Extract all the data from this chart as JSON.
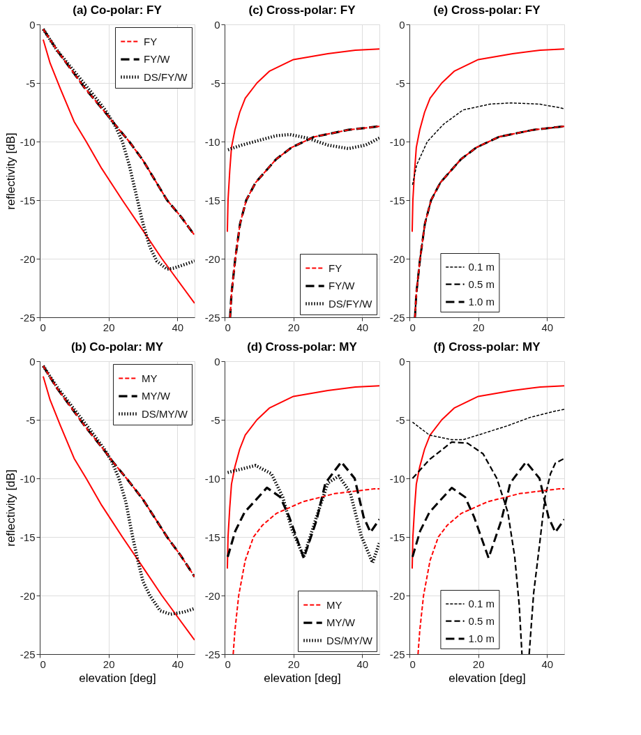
{
  "chart_data": [
    {
      "type": "line",
      "title": "(a) Co-polar: FY",
      "ylabel": "reflectivity [dB]",
      "xlim": [
        0,
        45
      ],
      "xticks": [
        0,
        20,
        40
      ],
      "ylim": [
        -25,
        0
      ],
      "yticks": [
        -25,
        -20,
        -15,
        -10,
        -5,
        0
      ],
      "grid": true,
      "legend": "top right",
      "series": [
        {
          "color": "#ff0000",
          "line_style": "solid",
          "x": [
            1,
            3,
            6,
            10,
            13.5,
            18,
            24,
            30,
            35.5,
            40,
            45
          ],
          "values": [
            -1.3,
            -3.3,
            -5.5,
            -8.3,
            -10,
            -12.3,
            -15,
            -17.6,
            -20,
            -21.8,
            -23.8
          ]
        },
        {
          "name": "FY",
          "color": "#ff0000",
          "line_style": "dashed",
          "x": [
            1,
            5,
            10,
            13,
            19,
            22,
            26,
            30,
            37,
            41,
            45
          ],
          "values": [
            -0.4,
            -2.2,
            -4.2,
            -5.4,
            -7.5,
            -8.6,
            -10,
            -11.6,
            -15,
            -16.4,
            -18
          ]
        },
        {
          "name": "FY/W",
          "color": "#000000",
          "line_style": "dashed",
          "x": [
            1,
            5,
            10,
            13,
            19,
            22,
            26,
            30,
            37,
            41,
            45
          ],
          "values": [
            -0.4,
            -2.2,
            -4.2,
            -5.4,
            -7.5,
            -8.6,
            -10,
            -11.6,
            -15,
            -16.4,
            -18
          ]
        },
        {
          "name": "DS/FY/W",
          "color": "#000000",
          "line_style": "dotted",
          "x": [
            1,
            5,
            10,
            15,
            19,
            22,
            24,
            26,
            28,
            30,
            32,
            34,
            37,
            39,
            42,
            45
          ],
          "values": [
            -0.4,
            -2.2,
            -4,
            -5.8,
            -7.3,
            -8.7,
            -10,
            -12,
            -14.5,
            -17,
            -19,
            -20.2,
            -20.9,
            -20.8,
            -20.5,
            -20.2
          ]
        }
      ]
    },
    {
      "type": "line",
      "title": "(c) Cross-polar: FY",
      "xlim": [
        0,
        45
      ],
      "xticks": [
        0,
        20,
        40
      ],
      "ylim": [
        -25,
        0
      ],
      "yticks": [
        -25,
        -20,
        -15,
        -10,
        -5,
        0
      ],
      "grid": true,
      "legend": "bottom right",
      "series": [
        {
          "color": "#ff0000",
          "line_style": "solid",
          "x": [
            0.8,
            1,
            1.5,
            2,
            3,
            4.4,
            6,
            9.4,
            13,
            20,
            30,
            38,
            45
          ],
          "values": [
            -17.7,
            -15,
            -12.5,
            -10.5,
            -9,
            -7.5,
            -6.3,
            -5,
            -4,
            -3,
            -2.5,
            -2.2,
            -2.1
          ]
        },
        {
          "name": "FY",
          "color": "#ff0000",
          "line_style": "dashed",
          "x": [
            1.6,
            2,
            3.1,
            4.5,
            6.3,
            9,
            12,
            15,
            19.5,
            26,
            36,
            45
          ],
          "values": [
            -25,
            -23,
            -20,
            -17,
            -15,
            -13.5,
            -12.5,
            -11.5,
            -10.5,
            -9.6,
            -9,
            -8.7
          ]
        },
        {
          "name": "FY/W",
          "color": "#000000",
          "line_style": "dashed",
          "x": [
            1.6,
            2,
            3.1,
            4.5,
            6.3,
            9,
            12,
            15,
            19.5,
            26,
            36,
            45
          ],
          "values": [
            -25,
            -23,
            -20,
            -17,
            -15,
            -13.5,
            -12.5,
            -11.5,
            -10.5,
            -9.6,
            -9,
            -8.7
          ]
        },
        {
          "name": "DS/FY/W",
          "color": "#000000",
          "line_style": "dotted",
          "x": [
            1,
            5,
            10,
            15,
            19,
            24,
            30,
            36,
            41,
            45
          ],
          "values": [
            -10.7,
            -10.3,
            -9.9,
            -9.5,
            -9.4,
            -9.7,
            -10.3,
            -10.6,
            -10.3,
            -9.7
          ]
        }
      ]
    },
    {
      "type": "line",
      "title": "(e) Cross-polar: FY",
      "xlim": [
        0,
        45
      ],
      "xticks": [
        0,
        20,
        40
      ],
      "ylim": [
        -25,
        0
      ],
      "yticks": [
        -25,
        -20,
        -15,
        -10,
        -5,
        0
      ],
      "grid": true,
      "legend": "bottom left",
      "series": [
        {
          "color": "#ff0000",
          "line_style": "solid",
          "x": [
            0.8,
            1,
            1.5,
            2,
            3,
            4.4,
            6,
            9.4,
            13,
            20,
            30,
            38,
            45
          ],
          "values": [
            -17.7,
            -15,
            -12.5,
            -10.5,
            -9,
            -7.5,
            -6.3,
            -5,
            -4,
            -3,
            -2.5,
            -2.2,
            -2.1
          ]
        },
        {
          "color": "#ff0000",
          "line_style": "dashed",
          "x": [
            1.6,
            2,
            3.1,
            4.5,
            6.3,
            9,
            12,
            15,
            19.5,
            26,
            36,
            45
          ],
          "values": [
            -25,
            -23,
            -20,
            -17,
            -15,
            -13.5,
            -12.5,
            -11.5,
            -10.5,
            -9.6,
            -9,
            -8.7
          ]
        },
        {
          "name": "0.1 m",
          "color": "#000000",
          "line_style": "dashed",
          "x": [
            0.9,
            2.1,
            5.2,
            10,
            15.6,
            23.5,
            29.6,
            37.7,
            43.5,
            45
          ],
          "values": [
            -13.7,
            -12,
            -10,
            -8.5,
            -7.3,
            -6.8,
            -6.7,
            -6.8,
            -7.1,
            -7.2
          ]
        },
        {
          "name": "0.5 m",
          "color": "#000000",
          "line_style": "dashed",
          "x": [
            1.6,
            2,
            3.1,
            4.5,
            6.3,
            9,
            12,
            15,
            19.5,
            26,
            36,
            45
          ],
          "values": [
            -25,
            -23,
            -20,
            -17,
            -15,
            -13.5,
            -12.5,
            -11.5,
            -10.5,
            -9.6,
            -9,
            -8.7
          ]
        },
        {
          "name": "1.0 m",
          "color": "#000000",
          "line_style": "dashed",
          "x": [
            1.6,
            2,
            3.1,
            4.5,
            6.3,
            9,
            12,
            15,
            19.5,
            26,
            36,
            45
          ],
          "values": [
            -25,
            -23,
            -20,
            -17,
            -15,
            -13.5,
            -12.5,
            -11.5,
            -10.5,
            -9.6,
            -9,
            -8.7
          ]
        }
      ]
    },
    {
      "type": "line",
      "title": "(b) Co-polar: MY",
      "xlabel": "elevation [deg]",
      "ylabel": "reflectivity [dB]",
      "xlim": [
        0,
        45
      ],
      "xticks": [
        0,
        20,
        40
      ],
      "ylim": [
        -25,
        0
      ],
      "yticks": [
        -25,
        -20,
        -15,
        -10,
        -5,
        0
      ],
      "grid": true,
      "legend": "top right",
      "series": [
        {
          "color": "#ff0000",
          "line_style": "solid",
          "x": [
            1,
            3,
            6,
            10,
            13.5,
            18,
            24,
            30,
            35.5,
            40,
            45
          ],
          "values": [
            -1.3,
            -3.3,
            -5.5,
            -8.3,
            -10,
            -12.3,
            -15,
            -17.6,
            -20,
            -21.8,
            -23.8
          ]
        },
        {
          "name": "MY",
          "color": "#ff0000",
          "line_style": "dashed",
          "x": [
            1,
            5,
            10,
            13,
            19,
            21,
            25.5,
            30,
            37,
            41,
            45
          ],
          "values": [
            -0.4,
            -2.3,
            -4.3,
            -5.5,
            -7.7,
            -8.5,
            -10.1,
            -11.8,
            -15,
            -16.6,
            -18.4
          ]
        },
        {
          "name": "MY/W",
          "color": "#000000",
          "line_style": "dashed",
          "x": [
            1,
            5,
            10,
            13,
            19,
            21,
            25.5,
            30,
            37,
            41,
            45
          ],
          "values": [
            -0.4,
            -2.3,
            -4.3,
            -5.5,
            -7.7,
            -8.5,
            -10.1,
            -11.8,
            -15,
            -16.6,
            -18.4
          ]
        },
        {
          "name": "DS/MY/W",
          "color": "#000000",
          "line_style": "dotted",
          "x": [
            1,
            5,
            10,
            15,
            19,
            21,
            23,
            25,
            27,
            28.5,
            30,
            32,
            35,
            38,
            42,
            45
          ],
          "values": [
            -0.4,
            -2.2,
            -4.1,
            -6,
            -7.6,
            -8.6,
            -10,
            -12,
            -15,
            -17,
            -18.8,
            -20,
            -21.3,
            -21.6,
            -21.4,
            -21.1
          ]
        }
      ]
    },
    {
      "type": "line",
      "title": "(d) Cross-polar: MY",
      "xlabel": "elevation [deg]",
      "xlim": [
        0,
        45
      ],
      "xticks": [
        0,
        20,
        40
      ],
      "ylim": [
        -25,
        0
      ],
      "yticks": [
        -25,
        -20,
        -15,
        -10,
        -5,
        0
      ],
      "grid": true,
      "legend": "bottom right",
      "series": [
        {
          "color": "#ff0000",
          "line_style": "solid",
          "x": [
            0.8,
            1,
            1.5,
            2,
            3,
            4.4,
            6,
            9.4,
            13,
            20,
            30,
            38,
            45
          ],
          "values": [
            -17.7,
            -15,
            -12.5,
            -10.5,
            -9,
            -7.5,
            -6.3,
            -5,
            -4,
            -3,
            -2.5,
            -2.2,
            -2.1
          ]
        },
        {
          "name": "MY",
          "color": "#ff0000",
          "line_style": "dashed",
          "x": [
            2.5,
            3,
            4.1,
            6,
            8.4,
            11,
            15,
            22.7,
            32,
            43.3,
            45
          ],
          "values": [
            -25,
            -23,
            -20,
            -17,
            -15,
            -14,
            -13,
            -12,
            -11.3,
            -10.9,
            -10.9
          ]
        },
        {
          "name": "MY/W",
          "color": "#000000",
          "line_style": "dashed",
          "x": [
            0.9,
            3.1,
            5.8,
            12.3,
            16.2,
            18.8,
            23,
            26.7,
            29.3,
            33.9,
            37.8,
            40.4,
            42.4,
            45
          ],
          "values": [
            -16.7,
            -14.5,
            -12.9,
            -10.8,
            -11.6,
            -13.3,
            -16.8,
            -13.6,
            -10.4,
            -8.6,
            -10,
            -13.3,
            -14.6,
            -13.5
          ]
        },
        {
          "name": "DS/MY/W",
          "color": "#000000",
          "line_style": "dotted",
          "x": [
            0.9,
            9,
            13.6,
            16.9,
            19.5,
            23,
            26.7,
            30,
            33.2,
            36.5,
            39.7,
            43,
            45
          ],
          "values": [
            -9.5,
            -8.9,
            -9.6,
            -11.6,
            -14.3,
            -16.7,
            -13.3,
            -10.4,
            -9.8,
            -11.2,
            -14.9,
            -17.2,
            -15.5
          ]
        }
      ]
    },
    {
      "type": "line",
      "title": "(f) Cross-polar: MY",
      "xlabel": "elevation [deg]",
      "xlim": [
        0,
        45
      ],
      "xticks": [
        0,
        20,
        40
      ],
      "ylim": [
        -25,
        0
      ],
      "yticks": [
        -25,
        -20,
        -15,
        -10,
        -5,
        0
      ],
      "grid": true,
      "legend": "bottom left",
      "series": [
        {
          "color": "#ff0000",
          "line_style": "solid",
          "x": [
            0.8,
            1,
            1.5,
            2,
            3,
            4.4,
            6,
            9.4,
            13,
            20,
            30,
            38,
            45
          ],
          "values": [
            -17.7,
            -15,
            -12.5,
            -10.5,
            -9,
            -7.5,
            -6.3,
            -5,
            -4,
            -3,
            -2.5,
            -2.2,
            -2.1
          ]
        },
        {
          "color": "#ff0000",
          "line_style": "dashed",
          "x": [
            2.5,
            3,
            4.1,
            6,
            8.4,
            11,
            15,
            22.7,
            32,
            43.3,
            45
          ],
          "values": [
            -25,
            -23,
            -20,
            -17,
            -15,
            -14,
            -13,
            -12,
            -11.3,
            -10.9,
            -10.9
          ]
        },
        {
          "name": "0.1 m",
          "color": "#000000",
          "line_style": "dashed",
          "x": [
            0.9,
            5.8,
            12.3,
            15.6,
            20,
            28.6,
            35,
            41.7,
            45
          ],
          "values": [
            -5.2,
            -6.3,
            -6.7,
            -6.7,
            -6.3,
            -5.5,
            -4.8,
            -4.3,
            -4.1
          ]
        },
        {
          "name": "0.5 m",
          "color": "#000000",
          "line_style": "dashed",
          "x": [
            0.9,
            5.8,
            12.3,
            16.9,
            21.4,
            25.4,
            28.6,
            30.6,
            31.9,
            32.7,
            33.8,
            34.8,
            36.1,
            37.8,
            39.4,
            41,
            42.4,
            45
          ],
          "values": [
            -10,
            -8.4,
            -6.9,
            -7,
            -7.9,
            -10,
            -12.9,
            -16.7,
            -20.8,
            -25,
            null,
            -25,
            -19.8,
            -15.7,
            -11.6,
            -9.6,
            -8.7,
            -8.3
          ]
        },
        {
          "name": "1.0 m",
          "color": "#000000",
          "line_style": "dashed",
          "x": [
            0.9,
            3.1,
            5.8,
            12.3,
            16.2,
            18.8,
            23,
            26.7,
            29.3,
            33.9,
            37.8,
            40.4,
            42.4,
            45
          ],
          "values": [
            -16.7,
            -14.5,
            -12.9,
            -10.8,
            -11.6,
            -13.3,
            -16.8,
            -13.6,
            -10.4,
            -8.6,
            -10,
            -13.3,
            -14.6,
            -13.5
          ]
        }
      ]
    }
  ]
}
